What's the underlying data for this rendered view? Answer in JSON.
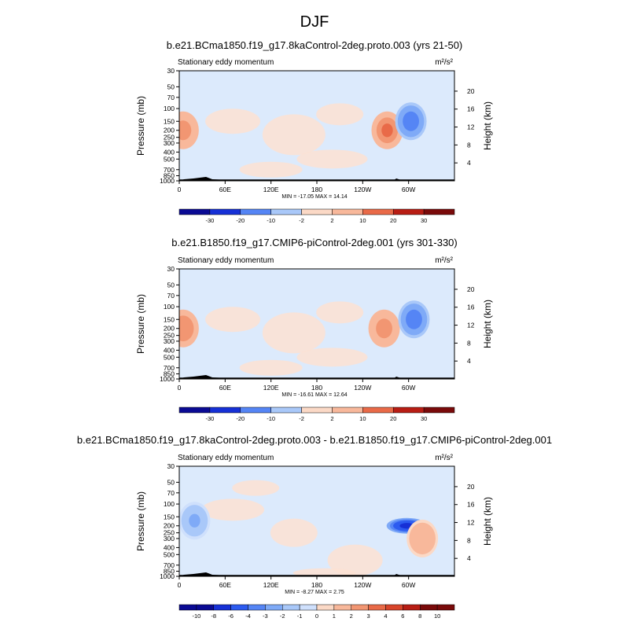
{
  "figure_title": "DJF",
  "chart_data": [
    {
      "type": "heatmap",
      "title": "b.e21.BCma1850.f19_g17.8kaControl-2deg.proto.003 (yrs 21-50)",
      "subtitle": "Stationary eddy momentum",
      "units": "m²/s²",
      "ylabel": "Pressure (mb)",
      "ylabel_right": "Height (km)",
      "xlabel": "",
      "x_ticks": [
        "0",
        "60E",
        "120E",
        "180",
        "120W",
        "60W"
      ],
      "y_ticks": [
        "30",
        "50",
        "70",
        "100",
        "150",
        "200",
        "250",
        "300",
        "400",
        "500",
        "700",
        "850",
        "1000"
      ],
      "y_ticks_right": [
        "20",
        "16",
        "12",
        "8",
        "4"
      ],
      "stats": "MIN = -17.05  MAX =  14.14",
      "colorbar_labels": [
        "-30",
        "-20",
        "-10",
        "-2",
        "2",
        "10",
        "20",
        "30"
      ],
      "features": [
        {
          "lon": 5,
          "p": 200,
          "value": 12
        },
        {
          "lon": 272,
          "p": 200,
          "value": 14.14
        },
        {
          "lon": 303,
          "p": 150,
          "value": -17.05
        }
      ]
    },
    {
      "type": "heatmap",
      "title": "b.e21.B1850.f19_g17.CMIP6-piControl-2deg.001 (yrs 301-330)",
      "subtitle": "Stationary eddy momentum",
      "units": "m²/s²",
      "ylabel": "Pressure (mb)",
      "ylabel_right": "Height (km)",
      "xlabel": "",
      "x_ticks": [
        "0",
        "60E",
        "120E",
        "180",
        "120W",
        "60W"
      ],
      "y_ticks": [
        "30",
        "50",
        "70",
        "100",
        "150",
        "200",
        "250",
        "300",
        "400",
        "500",
        "700",
        "850",
        "1000"
      ],
      "y_ticks_right": [
        "20",
        "16",
        "12",
        "8",
        "4"
      ],
      "stats": "MIN = -16.61  MAX =  12.64",
      "colorbar_labels": [
        "-30",
        "-20",
        "-10",
        "-2",
        "2",
        "10",
        "20",
        "30"
      ],
      "features": [
        {
          "lon": 5,
          "p": 200,
          "value": 12.64
        },
        {
          "lon": 268,
          "p": 200,
          "value": 11
        },
        {
          "lon": 307,
          "p": 150,
          "value": -16.61
        }
      ]
    },
    {
      "type": "heatmap",
      "title": "b.e21.BCma1850.f19_g17.8kaControl-2deg.proto.003 - b.e21.B1850.f19_g17.CMIP6-piControl-2deg.001",
      "subtitle": "Stationary eddy momentum",
      "units": "m²/s²",
      "ylabel": "Pressure (mb)",
      "ylabel_right": "Height (km)",
      "xlabel": "",
      "x_ticks": [
        "0",
        "60E",
        "120E",
        "180",
        "120W",
        "60W"
      ],
      "y_ticks": [
        "30",
        "50",
        "70",
        "100",
        "150",
        "200",
        "250",
        "300",
        "400",
        "500",
        "700",
        "850",
        "1000"
      ],
      "y_ticks_right": [
        "20",
        "16",
        "12",
        "8",
        "4"
      ],
      "stats": "MIN = -8.27  MAX =  2.75",
      "colorbar_labels": [
        "-10",
        "-8",
        "-6",
        "-4",
        "-3",
        "-2",
        "-1",
        "0",
        "1",
        "2",
        "3",
        "4",
        "6",
        "8",
        "10"
      ],
      "features": [
        {
          "lon": 20,
          "p": 170,
          "value": -3
        },
        {
          "lon": 298,
          "p": 200,
          "value": -8.27
        },
        {
          "lon": 318,
          "p": 300,
          "value": 2.75
        }
      ]
    }
  ]
}
